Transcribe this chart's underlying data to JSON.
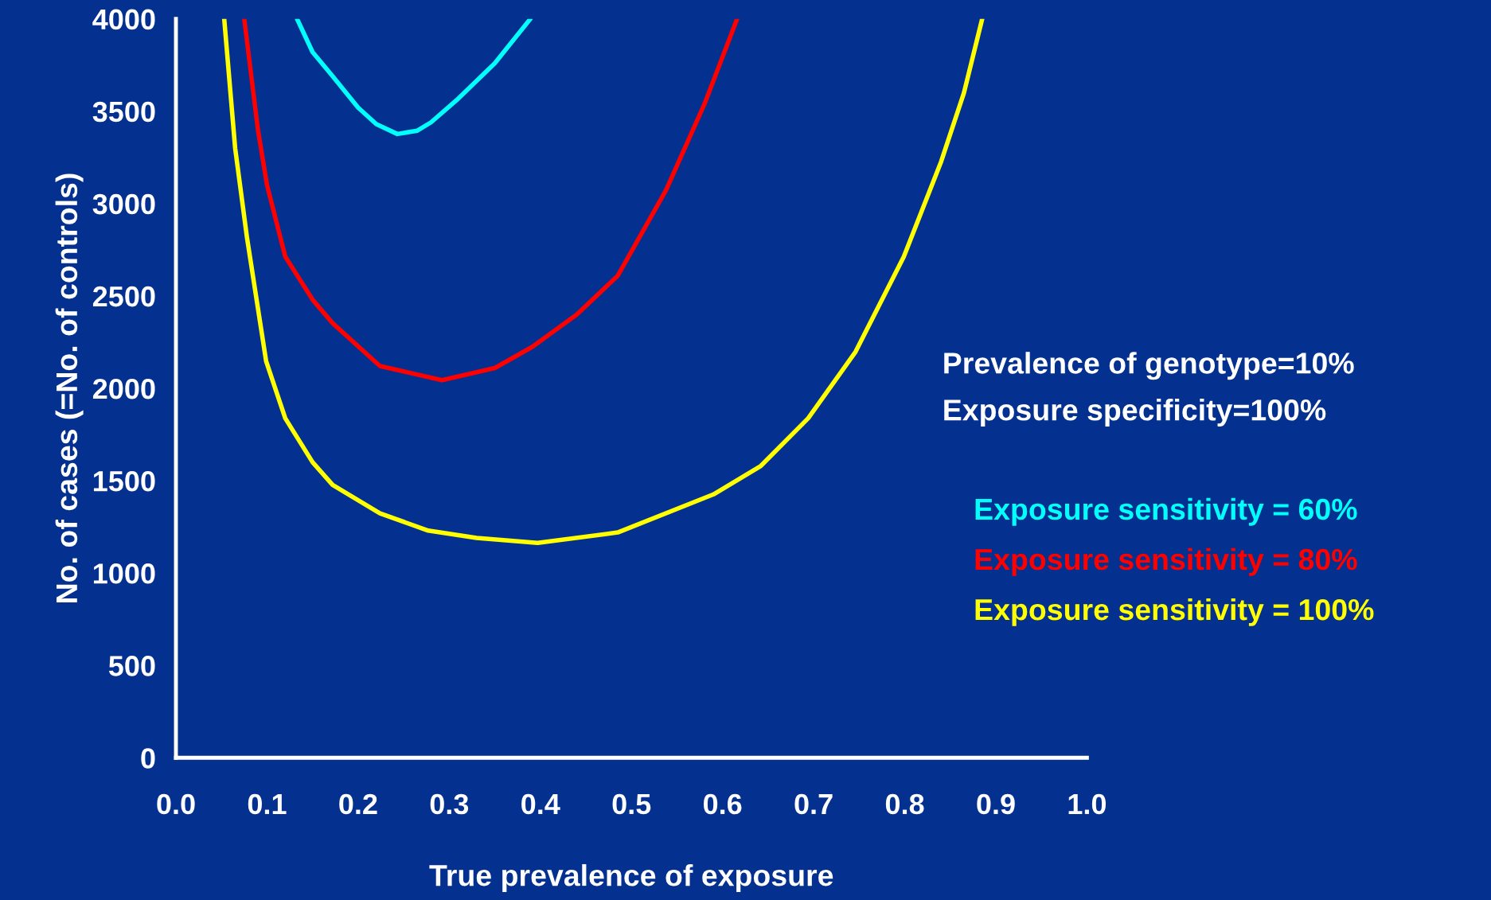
{
  "chart_data": {
    "type": "line",
    "xlabel": "True prevalence of exposure",
    "ylabel": "No. of cases (=No. of controls)",
    "xlim": [
      0,
      1.0
    ],
    "xticks": [
      {
        "value": 0,
        "label": "0.0"
      },
      0.1,
      0.2,
      0.3,
      0.4,
      0.5,
      0.6,
      0.7,
      0.8,
      0.9,
      {
        "value": 1.0,
        "label": "1.0"
      }
    ],
    "ylim": [
      0,
      4000
    ],
    "yticks": [
      0,
      500,
      1000,
      1500,
      2000,
      2500,
      3000,
      3500,
      4000
    ],
    "grid": false,
    "legend": "right",
    "line_style": "solid",
    "marker": "none",
    "annotations": [
      "Prevalence of genotype=10%",
      "Exposure specificity=100%"
    ],
    "series": [
      {
        "name": "Exposure sensitivity = 60%",
        "color": "#00ffff",
        "x": [
          0.133,
          0.15,
          0.172,
          0.2,
          0.22,
          0.243,
          0.265,
          0.28,
          0.308,
          0.35,
          0.389
        ],
        "values": [
          4000,
          3820,
          3690,
          3520,
          3430,
          3377,
          3395,
          3440,
          3560,
          3760,
          4000
        ]
      },
      {
        "name": "Exposure sensitivity = 80%",
        "color": "#ff0000",
        "x": [
          0.075,
          0.09,
          0.1,
          0.12,
          0.15,
          0.172,
          0.224,
          0.292,
          0.35,
          0.391,
          0.44,
          0.485,
          0.538,
          0.58,
          0.616
        ],
        "values": [
          4000,
          3400,
          3100,
          2713,
          2480,
          2353,
          2121,
          2044,
          2110,
          2224,
          2400,
          2610,
          3073,
          3537,
          4000
        ]
      },
      {
        "name": "Exposure sensitivity = 100%",
        "color": "#ffff00",
        "x": [
          0.053,
          0.065,
          0.078,
          0.099,
          0.12,
          0.15,
          0.172,
          0.224,
          0.277,
          0.33,
          0.397,
          0.485,
          0.59,
          0.642,
          0.694,
          0.746,
          0.799,
          0.84,
          0.865,
          0.885
        ],
        "values": [
          4000,
          3300,
          2816,
          2147,
          1838,
          1600,
          1477,
          1323,
          1230,
          1190,
          1163,
          1220,
          1426,
          1580,
          1838,
          2198,
          2713,
          3228,
          3600,
          4000
        ]
      }
    ]
  }
}
